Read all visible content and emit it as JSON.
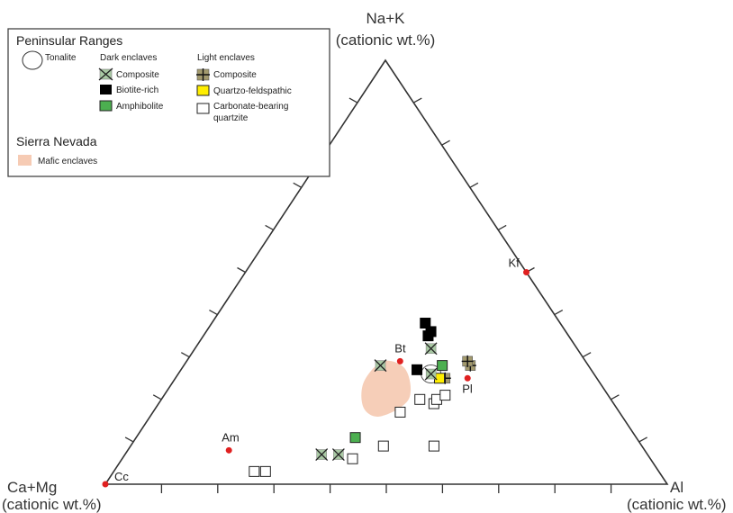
{
  "chart_data": {
    "type": "ternary-scatter",
    "apex_top": {
      "name": "Na+K",
      "unit": "(cationic wt.%)"
    },
    "apex_left": {
      "name": "Ca+Mg",
      "unit": "(cationic wt.%)"
    },
    "apex_right": {
      "name": "Al",
      "unit": "(cationic wt.%)"
    },
    "legend": {
      "group1_title": "Peninsular Ranges",
      "tonalite_label": "Tonalite",
      "dark_title": "Dark enclaves",
      "light_title": "Light enclaves",
      "dark_items": [
        {
          "symbol": "x-square",
          "label": "Composite",
          "color": "#a9c9a4"
        },
        {
          "symbol": "square",
          "label": "Biotite-rich",
          "color": "#000000"
        },
        {
          "symbol": "square",
          "label": "Amphibolite",
          "color": "#4caf50"
        }
      ],
      "light_items": [
        {
          "symbol": "plus-square",
          "label": "Composite",
          "color": "#a39a6e"
        },
        {
          "symbol": "square",
          "label": "Quartzo-feldspathic",
          "color": "#ffee00"
        },
        {
          "symbol": "open-square",
          "label": "Carbonate-bearing",
          "label2": "quartzite",
          "color": "#ffffff"
        }
      ],
      "group2_title": "Sierra Nevada",
      "mafic_label": "Mafic enclaves",
      "mafic_color": "#f6cbb4"
    },
    "minerals": [
      {
        "label": "Cc",
        "ca": 1.0,
        "na": 0.0,
        "al": 0.0
      },
      {
        "label": "Am",
        "ca": 0.74,
        "na": 0.08,
        "al": 0.18
      },
      {
        "label": "Bt",
        "ca": 0.33,
        "na": 0.29,
        "al": 0.38
      },
      {
        "label": "Pl",
        "ca": 0.23,
        "na": 0.25,
        "al": 0.52
      },
      {
        "label": "Kf",
        "ca": 0.0,
        "na": 0.5,
        "al": 0.5
      }
    ],
    "mineral_color": "#e02020",
    "tonalite": {
      "ca": 0.29,
      "na": 0.26,
      "al": 0.45
    },
    "samples": {
      "dark_composite": [
        {
          "ca": 0.58,
          "na": 0.07,
          "al": 0.35
        },
        {
          "ca": 0.55,
          "na": 0.07,
          "al": 0.38
        },
        {
          "ca": 0.37,
          "na": 0.28,
          "al": 0.35
        },
        {
          "ca": 0.29,
          "na": 0.26,
          "al": 0.45
        },
        {
          "ca": 0.26,
          "na": 0.32,
          "al": 0.42
        }
      ],
      "biotite_rich": [
        {
          "ca": 0.31,
          "na": 0.27,
          "al": 0.42
        },
        {
          "ca": 0.24,
          "na": 0.38,
          "al": 0.38
        },
        {
          "ca": 0.24,
          "na": 0.36,
          "al": 0.4
        },
        {
          "ca": 0.25,
          "na": 0.35,
          "al": 0.4
        }
      ],
      "amphibolite": [
        {
          "ca": 0.5,
          "na": 0.11,
          "al": 0.39
        },
        {
          "ca": 0.26,
          "na": 0.28,
          "al": 0.46
        }
      ],
      "light_composite": [
        {
          "ca": 0.21,
          "na": 0.28,
          "al": 0.51
        },
        {
          "ca": 0.21,
          "na": 0.29,
          "al": 0.5
        },
        {
          "ca": 0.27,
          "na": 0.25,
          "al": 0.48
        }
      ],
      "quartzo_feldspathic": [
        {
          "ca": 0.28,
          "na": 0.25,
          "al": 0.47
        }
      ],
      "carbonate_quartzite": [
        {
          "ca": 0.72,
          "na": 0.03,
          "al": 0.25
        },
        {
          "ca": 0.7,
          "na": 0.03,
          "al": 0.27
        },
        {
          "ca": 0.53,
          "na": 0.06,
          "al": 0.41
        },
        {
          "ca": 0.46,
          "na": 0.09,
          "al": 0.45
        },
        {
          "ca": 0.37,
          "na": 0.09,
          "al": 0.54
        },
        {
          "ca": 0.39,
          "na": 0.17,
          "al": 0.44
        },
        {
          "ca": 0.34,
          "na": 0.2,
          "al": 0.46
        },
        {
          "ca": 0.32,
          "na": 0.19,
          "al": 0.49
        },
        {
          "ca": 0.31,
          "na": 0.2,
          "al": 0.49
        },
        {
          "ca": 0.29,
          "na": 0.21,
          "al": 0.5
        }
      ]
    },
    "mafic_field": [
      {
        "ca": 0.43,
        "na": 0.16,
        "al": 0.41
      },
      {
        "ca": 0.36,
        "na": 0.2,
        "al": 0.44
      },
      {
        "ca": 0.33,
        "na": 0.27,
        "al": 0.4
      },
      {
        "ca": 0.36,
        "na": 0.29,
        "al": 0.35
      },
      {
        "ca": 0.42,
        "na": 0.24,
        "al": 0.34
      },
      {
        "ca": 0.45,
        "na": 0.18,
        "al": 0.37
      }
    ]
  }
}
